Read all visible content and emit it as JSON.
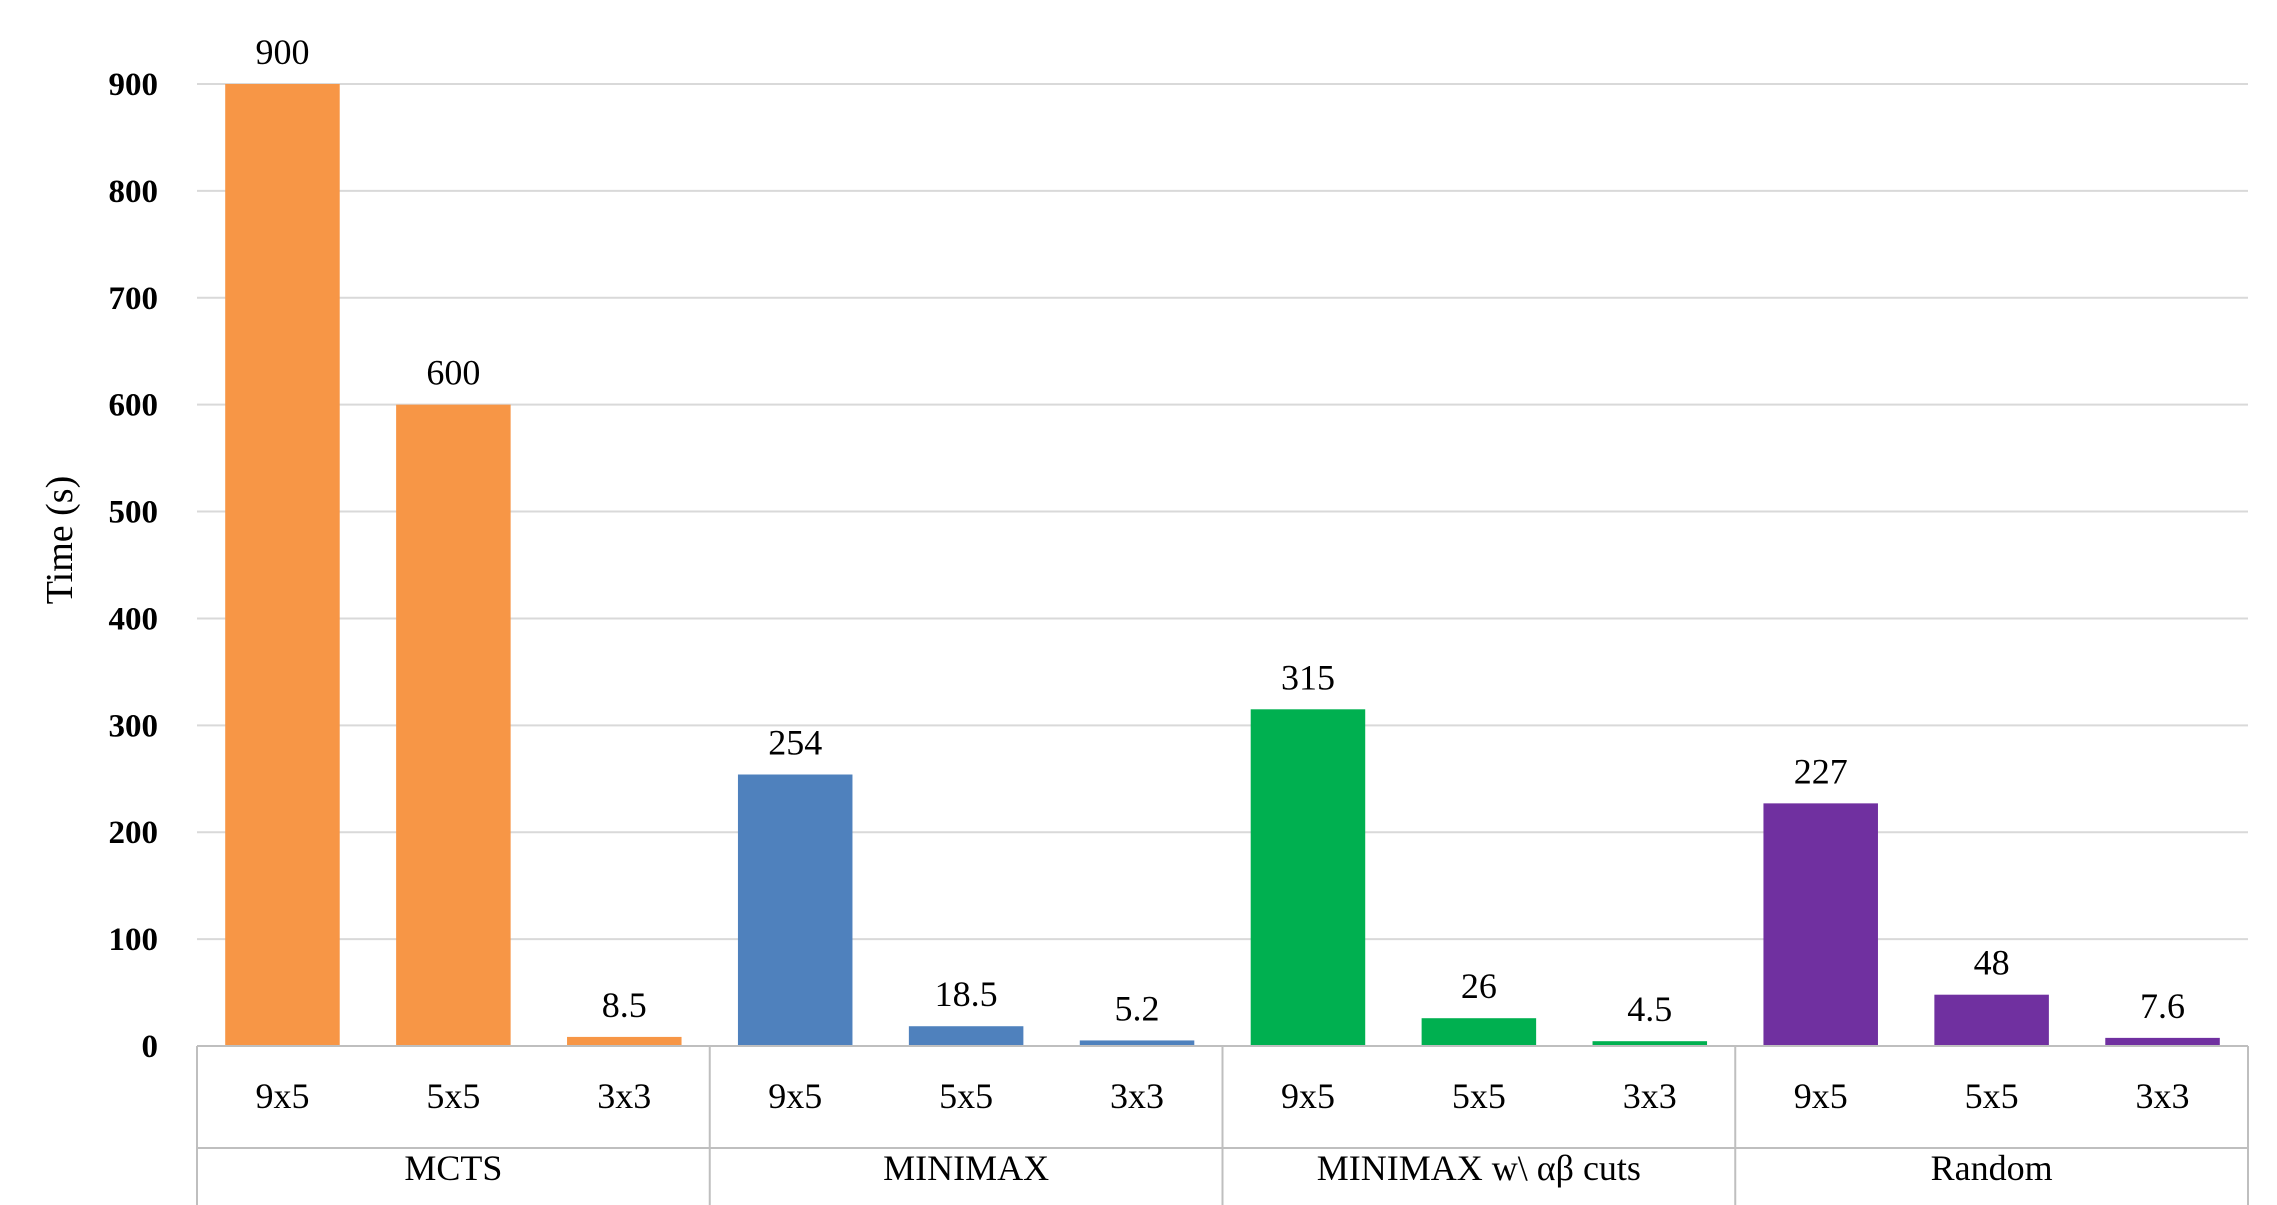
{
  "chart_data": {
    "type": "bar",
    "ylabel": "Time (s)",
    "xlabel": "",
    "ylim": [
      0,
      900
    ],
    "yticks": [
      0,
      100,
      200,
      300,
      400,
      500,
      600,
      700,
      800,
      900
    ],
    "grid": true,
    "groups": [
      {
        "name": "MCTS",
        "color": "#F79646",
        "categories": [
          "9x5",
          "5x5",
          "3x3"
        ],
        "values": [
          900,
          600,
          8.5
        ],
        "labels": [
          "900",
          "600",
          "8.5"
        ]
      },
      {
        "name": "MINIMAX",
        "color": "#4F81BD",
        "categories": [
          "9x5",
          "5x5",
          "3x3"
        ],
        "values": [
          254,
          18.5,
          5.2
        ],
        "labels": [
          "254",
          "18.5",
          "5.2"
        ]
      },
      {
        "name": "MINIMAX w\\ αβ cuts",
        "color": "#00B050",
        "categories": [
          "9x5",
          "5x5",
          "3x3"
        ],
        "values": [
          315,
          26,
          4.5
        ],
        "labels": [
          "315",
          "26",
          "4.5"
        ]
      },
      {
        "name": "Random",
        "color": "#7030A0",
        "categories": [
          "9x5",
          "5x5",
          "3x3"
        ],
        "values": [
          227,
          48,
          7.6
        ],
        "labels": [
          "227",
          "48",
          "7.6"
        ]
      }
    ]
  }
}
